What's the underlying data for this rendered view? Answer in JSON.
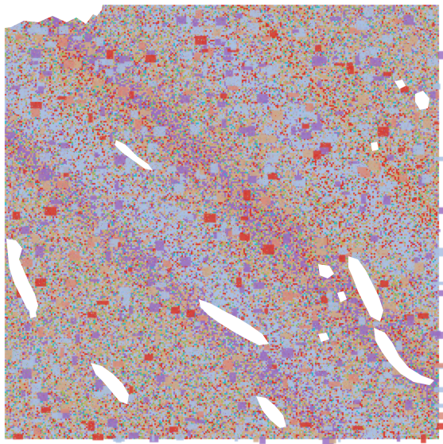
{
  "map": {
    "type": "categorical-raster",
    "background_color": "#ffffff",
    "dominant_class": "tan",
    "classes": [
      {
        "id": "tan",
        "color": "#cfa98a"
      },
      {
        "id": "light-blue",
        "color": "#a9bfe3"
      },
      {
        "id": "purple",
        "color": "#9a6fc2"
      },
      {
        "id": "red",
        "color": "#d8362b"
      },
      {
        "id": "olive",
        "color": "#b8b35a"
      },
      {
        "id": "green",
        "color": "#7fb86a"
      },
      {
        "id": "teal",
        "color": "#2bb9c9"
      },
      {
        "id": "salmon",
        "color": "#d98b7a"
      },
      {
        "id": "gray",
        "color": "#b9b9b9"
      }
    ],
    "nodata_features": [
      "top-left-water",
      "top-center-water",
      "upper-right-pond",
      "center-left-streak",
      "left-lake",
      "center-lake",
      "right-lakes",
      "bottom-center-lake",
      "bottom-right-lake",
      "scattered-small-ponds"
    ]
  }
}
